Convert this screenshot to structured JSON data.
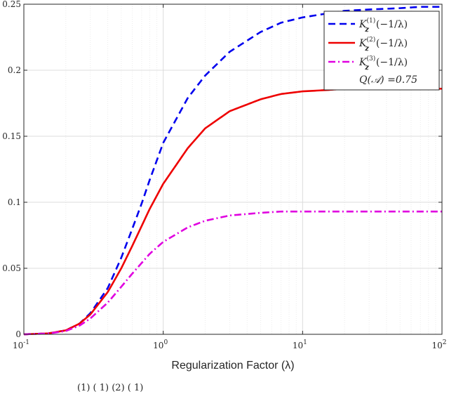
{
  "chart_data": {
    "type": "line",
    "xlabel": "Regularization Factor (λ)",
    "xscale": "log",
    "xlim": [
      0.1,
      100
    ],
    "ylim": [
      0,
      0.25
    ],
    "x_ticks": [
      0.1,
      1,
      10,
      100
    ],
    "x_tick_labels": [
      "10",
      "10",
      "10",
      "10"
    ],
    "x_tick_exponents": [
      "-1",
      "0",
      "1",
      "2"
    ],
    "y_ticks": [
      0,
      0.05,
      0.1,
      0.15,
      0.2,
      0.25
    ],
    "y_tick_labels": [
      "0",
      "0.05",
      "0.1",
      "0.15",
      "0.2",
      "0.25"
    ],
    "grid": true,
    "legend_position": "top-right",
    "series": [
      {
        "name": "K_z^(1)(−1/λ)",
        "color": "#0000ee",
        "style": "dashed",
        "x": [
          0.1,
          0.15,
          0.2,
          0.25,
          0.3,
          0.4,
          0.5,
          0.6,
          0.7,
          0.8,
          1,
          1.5,
          2,
          3,
          5,
          7,
          10,
          15,
          20,
          30,
          50,
          70,
          100
        ],
        "y": [
          0,
          0.0007,
          0.003,
          0.008,
          0.016,
          0.035,
          0.058,
          0.08,
          0.099,
          0.117,
          0.145,
          0.179,
          0.196,
          0.214,
          0.229,
          0.236,
          0.24,
          0.243,
          0.245,
          0.246,
          0.247,
          0.248,
          0.248
        ]
      },
      {
        "name": "K_z^(2)(−1/λ)",
        "color": "#ee0000",
        "style": "solid",
        "x": [
          0.1,
          0.15,
          0.2,
          0.25,
          0.3,
          0.4,
          0.5,
          0.6,
          0.7,
          0.8,
          1,
          1.5,
          2,
          3,
          5,
          7,
          10,
          15,
          20,
          30,
          50,
          70,
          100
        ],
        "y": [
          0,
          0.0007,
          0.003,
          0.008,
          0.015,
          0.032,
          0.05,
          0.067,
          0.082,
          0.095,
          0.114,
          0.141,
          0.156,
          0.169,
          0.178,
          0.182,
          0.184,
          0.185,
          0.186,
          0.186,
          0.186,
          0.186,
          0.186
        ]
      },
      {
        "name": "K_z^(3)(−1/λ)",
        "color": "#e000e0",
        "style": "dashdot",
        "x": [
          0.1,
          0.15,
          0.2,
          0.25,
          0.3,
          0.4,
          0.5,
          0.6,
          0.7,
          0.8,
          1,
          1.5,
          2,
          3,
          5,
          7,
          10,
          15,
          20,
          30,
          50,
          70,
          100
        ],
        "y": [
          0,
          0.0006,
          0.0025,
          0.0065,
          0.012,
          0.024,
          0.036,
          0.046,
          0.054,
          0.061,
          0.07,
          0.081,
          0.086,
          0.09,
          0.092,
          0.093,
          0.093,
          0.093,
          0.093,
          0.093,
          0.093,
          0.093,
          0.093
        ]
      }
    ],
    "legend": {
      "entries": [
        {
          "base": "K",
          "sub": "z",
          "sup": "(1)",
          "arg": "(−1/λ)"
        },
        {
          "base": "K",
          "sub": "z",
          "sup": "(2)",
          "arg": "(−1/λ)"
        },
        {
          "base": "K",
          "sub": "z",
          "sup": "(3)",
          "arg": "(−1/λ)"
        }
      ],
      "note": "Q(𝒜) =0.75"
    }
  },
  "caption_fragment": "(1)   (   1)                  (2)   (   1)"
}
